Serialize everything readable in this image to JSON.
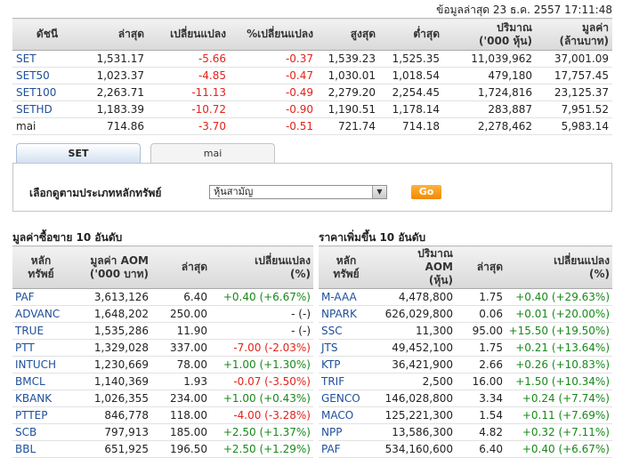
{
  "timestamp": "ข้อมูลล่าสุด 23 ธ.ค. 2557 17:11:48",
  "index_table": {
    "headers": [
      "ดัชนี",
      "ล่าสุด",
      "เปลี่ยนแปลง",
      "%เปลี่ยนแปลง",
      "สูงสุด",
      "ต่ำสุด",
      "ปริมาณ\n('000 หุ้น)",
      "มูลค่า\n(ล้านบาท)"
    ],
    "rows": [
      {
        "name": "SET",
        "last": "1,531.17",
        "chg": "-5.66",
        "pct": "-0.37",
        "high": "1,539.23",
        "low": "1,525.35",
        "vol": "11,039,962",
        "val": "37,001.09"
      },
      {
        "name": "SET50",
        "last": "1,023.37",
        "chg": "-4.85",
        "pct": "-0.47",
        "high": "1,030.01",
        "low": "1,018.54",
        "vol": "479,180",
        "val": "17,757.45"
      },
      {
        "name": "SET100",
        "last": "2,263.71",
        "chg": "-11.13",
        "pct": "-0.49",
        "high": "2,279.20",
        "low": "2,254.45",
        "vol": "1,724,816",
        "val": "23,125.37"
      },
      {
        "name": "SETHD",
        "last": "1,183.39",
        "chg": "-10.72",
        "pct": "-0.90",
        "high": "1,190.51",
        "low": "1,178.14",
        "vol": "283,887",
        "val": "7,951.52"
      },
      {
        "name": "mai",
        "last": "714.86",
        "chg": "-3.70",
        "pct": "-0.51",
        "high": "721.74",
        "low": "714.18",
        "vol": "2,278,462",
        "val": "5,983.14"
      }
    ]
  },
  "tabs": [
    {
      "label": "SET",
      "active": true
    },
    {
      "label": "mai",
      "active": false
    }
  ],
  "filter": {
    "label": "เลือกดูตามประเภทหลักทรัพย์",
    "selected": "หุ้นสามัญ",
    "go_label": "Go"
  },
  "left_table": {
    "title": "มูลค่าซื้อขาย 10 อันดับ",
    "headers": [
      "หลัก\nทรัพย์",
      "มูลค่า AOM\n('000 บาท)",
      "ล่าสุด",
      "เปลี่ยนแปลง\n(%)"
    ],
    "rows": [
      {
        "sym": "PAF",
        "val": "3,613,126",
        "last": "6.40",
        "chg": "+0.40 (+6.67%)",
        "dir": "pos"
      },
      {
        "sym": "ADVANC",
        "val": "1,648,202",
        "last": "250.00",
        "chg": "- (-)",
        "dir": "plain"
      },
      {
        "sym": "TRUE",
        "val": "1,535,286",
        "last": "11.90",
        "chg": "- (-)",
        "dir": "plain"
      },
      {
        "sym": "PTT",
        "val": "1,329,028",
        "last": "337.00",
        "chg": "-7.00 (-2.03%)",
        "dir": "neg"
      },
      {
        "sym": "INTUCH",
        "val": "1,230,669",
        "last": "78.00",
        "chg": "+1.00 (+1.30%)",
        "dir": "pos"
      },
      {
        "sym": "BMCL",
        "val": "1,140,369",
        "last": "1.93",
        "chg": "-0.07 (-3.50%)",
        "dir": "neg"
      },
      {
        "sym": "KBANK",
        "val": "1,026,355",
        "last": "234.00",
        "chg": "+1.00 (+0.43%)",
        "dir": "pos"
      },
      {
        "sym": "PTTEP",
        "val": "846,778",
        "last": "118.00",
        "chg": "-4.00 (-3.28%)",
        "dir": "neg"
      },
      {
        "sym": "SCB",
        "val": "797,913",
        "last": "185.00",
        "chg": "+2.50 (+1.37%)",
        "dir": "pos"
      },
      {
        "sym": "BBL",
        "val": "651,925",
        "last": "196.50",
        "chg": "+2.50 (+1.29%)",
        "dir": "pos"
      }
    ]
  },
  "right_table": {
    "title": "ราคาเพิ่มขึ้น 10 อันดับ",
    "headers": [
      "หลัก\nทรัพย์",
      "ปริมาณ\nAOM\n(หุ้น)",
      "ล่าสุด",
      "เปลี่ยนแปลง\n(%)"
    ],
    "rows": [
      {
        "sym": "M-AAA",
        "vol": "4,478,800",
        "last": "1.75",
        "chg": "+0.40 (+29.63%)",
        "dir": "pos"
      },
      {
        "sym": "NPARK",
        "vol": "626,029,800",
        "last": "0.06",
        "chg": "+0.01 (+20.00%)",
        "dir": "pos"
      },
      {
        "sym": "SSC",
        "vol": "11,300",
        "last": "95.00",
        "chg": "+15.50 (+19.50%)",
        "dir": "pos"
      },
      {
        "sym": "JTS",
        "vol": "49,452,100",
        "last": "1.75",
        "chg": "+0.21 (+13.64%)",
        "dir": "pos"
      },
      {
        "sym": "KTP",
        "vol": "36,421,900",
        "last": "2.66",
        "chg": "+0.26 (+10.83%)",
        "dir": "pos"
      },
      {
        "sym": "TRIF",
        "vol": "2,500",
        "last": "16.00",
        "chg": "+1.50 (+10.34%)",
        "dir": "pos"
      },
      {
        "sym": "GENCO",
        "vol": "146,028,800",
        "last": "3.34",
        "chg": "+0.24 (+7.74%)",
        "dir": "pos"
      },
      {
        "sym": "MACO",
        "vol": "125,221,300",
        "last": "1.54",
        "chg": "+0.11 (+7.69%)",
        "dir": "pos"
      },
      {
        "sym": "NPP",
        "vol": "13,586,300",
        "last": "4.82",
        "chg": "+0.32 (+7.11%)",
        "dir": "pos"
      },
      {
        "sym": "PAF",
        "vol": "534,160,600",
        "last": "6.40",
        "chg": "+0.40 (+6.67%)",
        "dir": "pos"
      }
    ]
  },
  "colors": {
    "positive": "#18891a",
    "negative": "#e2231a",
    "link": "#1e4f9a",
    "accent": "#f08a00"
  }
}
